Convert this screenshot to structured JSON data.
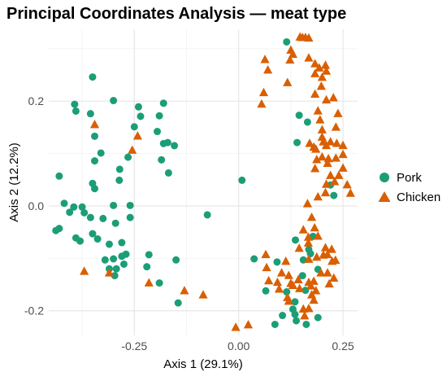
{
  "chart_data": {
    "type": "scatter",
    "title": "Principal Coordinates Analysis — meat type",
    "xlabel": "Axis 1 (29.1%)",
    "ylabel": "Axis 2 (12.2%)",
    "xlim": [
      -0.455,
      0.285
    ],
    "ylim": [
      -0.247,
      0.337
    ],
    "xticks": [
      -0.25,
      0.0,
      0.25
    ],
    "xtick_labels": [
      "-0.25",
      "0.00",
      "0.25"
    ],
    "yticks": [
      -0.2,
      0.0,
      0.2
    ],
    "ytick_labels": [
      "-0.2",
      "0.0",
      "0.2"
    ],
    "grid": true,
    "legend_position": "right",
    "series": [
      {
        "name": "Pork",
        "color": "#1b9e77",
        "marker": "circle",
        "points": [
          [
            -0.35,
            0.246
          ],
          [
            -0.3,
            0.201
          ],
          [
            -0.393,
            0.194
          ],
          [
            -0.355,
            0.176
          ],
          [
            -0.39,
            0.181
          ],
          [
            -0.24,
            0.189
          ],
          [
            -0.18,
            0.196
          ],
          [
            -0.19,
            0.172
          ],
          [
            -0.235,
            0.171
          ],
          [
            -0.25,
            0.151
          ],
          [
            -0.195,
            0.142
          ],
          [
            -0.17,
            0.121
          ],
          [
            -0.18,
            0.119
          ],
          [
            -0.154,
            0.115
          ],
          [
            -0.345,
            0.133
          ],
          [
            -0.33,
            0.101
          ],
          [
            -0.345,
            0.086
          ],
          [
            -0.265,
            0.093
          ],
          [
            -0.285,
            0.07
          ],
          [
            -0.185,
            0.088
          ],
          [
            -0.168,
            0.063
          ],
          [
            -0.43,
            0.057
          ],
          [
            -0.35,
            0.043
          ],
          [
            -0.345,
            0.033
          ],
          [
            -0.286,
            0.049
          ],
          [
            -0.418,
            0.005
          ],
          [
            -0.395,
            -0.002
          ],
          [
            -0.375,
            -0.002
          ],
          [
            -0.405,
            -0.012
          ],
          [
            -0.37,
            -0.013
          ],
          [
            -0.43,
            -0.043
          ],
          [
            -0.438,
            -0.047
          ],
          [
            -0.355,
            -0.022
          ],
          [
            -0.325,
            -0.024
          ],
          [
            -0.3,
            0.001
          ],
          [
            -0.26,
            0.001
          ],
          [
            -0.26,
            -0.022
          ],
          [
            -0.295,
            -0.033
          ],
          [
            -0.35,
            -0.053
          ],
          [
            -0.39,
            -0.061
          ],
          [
            -0.38,
            -0.067
          ],
          [
            -0.338,
            -0.063
          ],
          [
            -0.31,
            -0.073
          ],
          [
            -0.28,
            -0.07
          ],
          [
            -0.215,
            -0.093
          ],
          [
            -0.27,
            -0.092
          ],
          [
            -0.28,
            -0.096
          ],
          [
            -0.3,
            -0.101
          ],
          [
            -0.32,
            -0.103
          ],
          [
            -0.275,
            -0.111
          ],
          [
            -0.22,
            -0.116
          ],
          [
            -0.31,
            -0.12
          ],
          [
            -0.293,
            -0.12
          ],
          [
            -0.297,
            -0.133
          ],
          [
            -0.15,
            -0.103
          ],
          [
            -0.19,
            -0.147
          ],
          [
            -0.075,
            -0.017
          ],
          [
            0.008,
            0.049
          ],
          [
            0.065,
            -0.162
          ],
          [
            0.037,
            -0.101
          ],
          [
            0.115,
            0.313
          ],
          [
            0.145,
            0.173
          ],
          [
            0.165,
            0.16
          ],
          [
            0.14,
            0.121
          ],
          [
            0.136,
            -0.065
          ],
          [
            0.178,
            -0.058
          ],
          [
            0.168,
            -0.083
          ],
          [
            0.172,
            -0.091
          ],
          [
            0.155,
            -0.103
          ],
          [
            0.153,
            -0.133
          ],
          [
            0.135,
            -0.183
          ],
          [
            0.13,
            -0.197
          ],
          [
            0.135,
            -0.207
          ],
          [
            0.138,
            -0.219
          ],
          [
            0.162,
            -0.226
          ],
          [
            0.092,
            -0.107
          ],
          [
            0.087,
            -0.226
          ],
          [
            0.115,
            -0.164
          ],
          [
            0.16,
            -0.161
          ],
          [
            0.19,
            -0.121
          ],
          [
            0.22,
            0.04
          ],
          [
            0.228,
            0.02
          ],
          [
            0.105,
            -0.209
          ],
          [
            0.19,
            -0.213
          ],
          [
            -0.145,
            -0.185
          ]
        ]
      },
      {
        "name": "Chicken",
        "color": "#d95f02",
        "marker": "triangle",
        "points": [
          [
            0.147,
            0.322
          ],
          [
            0.153,
            0.321
          ],
          [
            0.16,
            0.321
          ],
          [
            0.168,
            0.32
          ],
          [
            0.125,
            0.297
          ],
          [
            0.13,
            0.289
          ],
          [
            0.063,
            0.279
          ],
          [
            0.07,
            0.259
          ],
          [
            0.123,
            0.278
          ],
          [
            0.168,
            0.282
          ],
          [
            0.183,
            0.271
          ],
          [
            0.208,
            0.268
          ],
          [
            0.21,
            0.257
          ],
          [
            0.193,
            0.263
          ],
          [
            0.183,
            0.252
          ],
          [
            0.2,
            0.245
          ],
          [
            0.117,
            0.235
          ],
          [
            0.06,
            0.216
          ],
          [
            0.055,
            0.194
          ],
          [
            0.198,
            0.228
          ],
          [
            0.183,
            0.213
          ],
          [
            0.227,
            0.206
          ],
          [
            0.238,
            0.176
          ],
          [
            0.21,
            0.202
          ],
          [
            0.19,
            0.181
          ],
          [
            0.195,
            0.164
          ],
          [
            0.2,
            0.131
          ],
          [
            0.2,
            0.145
          ],
          [
            0.233,
            0.15
          ],
          [
            0.22,
            0.122
          ],
          [
            0.185,
            0.108
          ],
          [
            0.17,
            0.119
          ],
          [
            0.18,
            0.112
          ],
          [
            0.203,
            0.122
          ],
          [
            0.21,
            0.115
          ],
          [
            0.235,
            0.119
          ],
          [
            0.25,
            0.115
          ],
          [
            0.25,
            0.098
          ],
          [
            0.2,
            0.093
          ],
          [
            0.187,
            0.088
          ],
          [
            0.215,
            0.09
          ],
          [
            0.213,
            0.081
          ],
          [
            0.183,
            0.071
          ],
          [
            0.233,
            0.091
          ],
          [
            0.22,
            0.058
          ],
          [
            0.24,
            0.058
          ],
          [
            0.25,
            0.072
          ],
          [
            0.23,
            0.046
          ],
          [
            0.21,
            0.041
          ],
          [
            0.26,
            0.04
          ],
          [
            0.268,
            0.024
          ],
          [
            0.208,
            0.025
          ],
          [
            0.19,
            0.017
          ],
          [
            0.165,
            0.004
          ],
          [
            0.175,
            -0.022
          ],
          [
            0.182,
            -0.042
          ],
          [
            0.155,
            -0.046
          ],
          [
            0.167,
            -0.06
          ],
          [
            0.145,
            -0.081
          ],
          [
            0.167,
            -0.071
          ],
          [
            0.19,
            -0.058
          ],
          [
            0.168,
            -0.102
          ],
          [
            0.187,
            -0.098
          ],
          [
            0.203,
            -0.094
          ],
          [
            0.213,
            -0.093
          ],
          [
            0.223,
            -0.083
          ],
          [
            0.208,
            -0.08
          ],
          [
            0.224,
            -0.106
          ],
          [
            0.232,
            -0.104
          ],
          [
            0.113,
            -0.106
          ],
          [
            0.103,
            -0.128
          ],
          [
            0.093,
            -0.146
          ],
          [
            0.097,
            -0.159
          ],
          [
            0.12,
            -0.133
          ],
          [
            0.125,
            -0.148
          ],
          [
            0.13,
            -0.152
          ],
          [
            0.143,
            -0.141
          ],
          [
            0.146,
            -0.158
          ],
          [
            0.168,
            -0.146
          ],
          [
            0.18,
            -0.144
          ],
          [
            0.197,
            -0.128
          ],
          [
            0.213,
            -0.128
          ],
          [
            0.228,
            -0.138
          ],
          [
            0.217,
            -0.149
          ],
          [
            0.185,
            -0.162
          ],
          [
            0.173,
            -0.153
          ],
          [
            0.175,
            -0.17
          ],
          [
            0.18,
            -0.18
          ],
          [
            0.168,
            -0.196
          ],
          [
            0.158,
            -0.21
          ],
          [
            0.065,
            -0.093
          ],
          [
            0.067,
            -0.118
          ],
          [
            0.072,
            -0.143
          ],
          [
            0.117,
            -0.175
          ],
          [
            0.12,
            -0.182
          ],
          [
            0.155,
            -0.197
          ],
          [
            0.023,
            -0.227
          ],
          [
            -0.007,
            -0.232
          ],
          [
            -0.085,
            -0.17
          ],
          [
            -0.13,
            -0.162
          ],
          [
            -0.215,
            -0.147
          ],
          [
            -0.242,
            0.133
          ],
          [
            -0.345,
            0.155
          ],
          [
            -0.37,
            -0.125
          ],
          [
            -0.31,
            -0.128
          ],
          [
            -0.255,
            0.106
          ]
        ]
      }
    ]
  }
}
